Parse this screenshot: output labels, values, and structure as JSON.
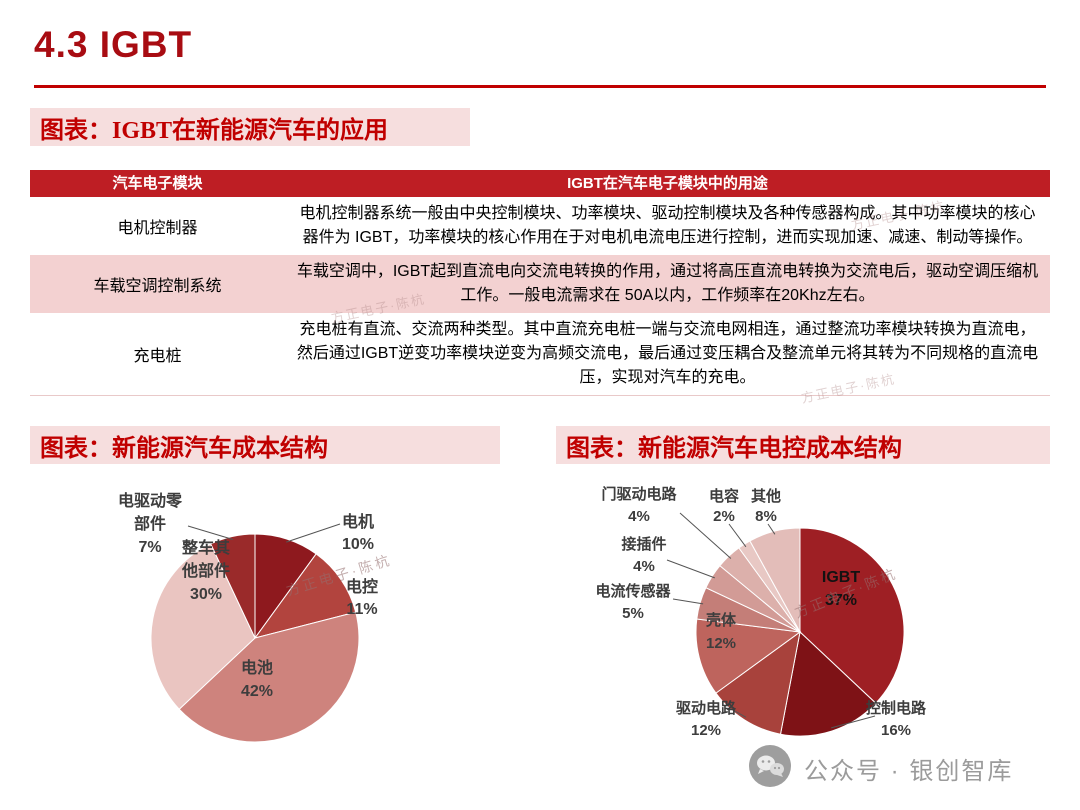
{
  "slide": {
    "title": "4.3 IGBT",
    "footer_label": "公众号 · 银创智库"
  },
  "section_app": {
    "banner": "图表：IGBT在新能源汽车的应用",
    "table": {
      "headers": [
        "汽车电子模块",
        "IGBT在汽车电子模块中的用途"
      ],
      "rows": [
        {
          "module": "电机控制器",
          "usage": "电机控制器系统一般由中央控制模块、功率模块、驱动控制模块及各种传感器构成。其中功率模块的核心器件为 IGBT，功率模块的核心作用在于对电机电流电压进行控制，进而实现加速、减速、制动等操作。"
        },
        {
          "module": "车载空调控制系统",
          "usage": "车载空调中，IGBT起到直流电向交流电转换的作用，通过将高压直流电转换为交流电后，驱动空调压缩机工作。一般电流需求在 50A以内，工作频率在20Khz左右。"
        },
        {
          "module": "充电桩",
          "usage": "充电桩有直流、交流两种类型。其中直流充电桩一端与交流电网相连，通过整流功率模块转换为直流电，然后通过IGBT逆变功率模块逆变为高频交流电，最后通过变压耦合及整流单元将其转为不同规格的直流电压，实现对汽车的充电。"
        }
      ]
    }
  },
  "section_cost": {
    "banner": "图表：新能源汽车成本结构"
  },
  "section_ecost": {
    "banner": "图表：新能源汽车电控成本结构"
  },
  "chart_data": [
    {
      "type": "pie",
      "title": "新能源汽车成本结构",
      "labels": [
        "电机",
        "电控",
        "电池",
        "整车其他部件",
        "电驱动零部件"
      ],
      "values": [
        10,
        11,
        42,
        30,
        7
      ],
      "colors": [
        "#8E191E",
        "#B2443E",
        "#CE837D",
        "#EAC5C1",
        "#9A2A2A"
      ],
      "watermark": "方正电子·陈杭",
      "legend_position": "outside-labels",
      "grid": false
    },
    {
      "type": "pie",
      "title": "新能源汽车电控成本结构",
      "labels": [
        "IGBT",
        "控制电路",
        "驱动电路",
        "壳体",
        "电流传感器",
        "接插件",
        "门驱动电路",
        "电容",
        "其他"
      ],
      "values": [
        37,
        16,
        12,
        12,
        5,
        4,
        4,
        2,
        8
      ],
      "colors": [
        "#9E1F24",
        "#7E1216",
        "#A8423C",
        "#BE645D",
        "#C47E78",
        "#D29B96",
        "#DCB0AB",
        "#E8C8C4",
        "#E3BDB9"
      ],
      "watermark": "方正电子·陈杭",
      "legend_position": "outside-labels",
      "grid": false
    }
  ]
}
